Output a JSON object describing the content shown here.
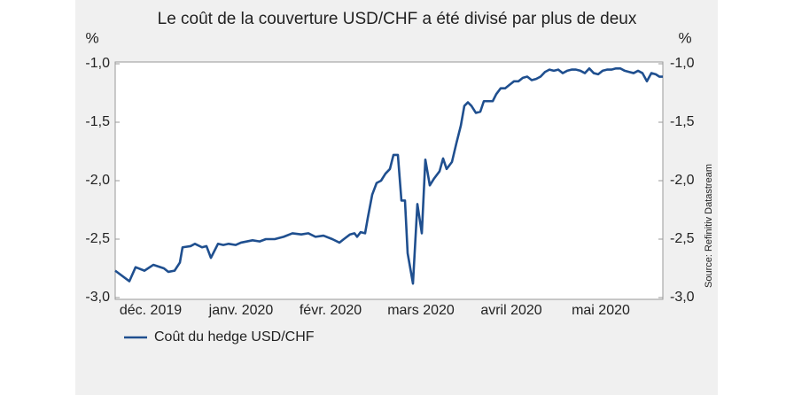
{
  "chart_data": {
    "type": "line",
    "title": "Le coût de la couverture USD/CHF a été divisé par plus de deux",
    "y_label": "%",
    "y2_label": "%",
    "source": "Source: Refinitiv Datastream",
    "x": [
      0,
      16,
      23,
      33,
      43,
      55,
      60,
      67,
      73,
      76,
      85,
      90,
      98,
      103,
      108,
      116,
      122,
      128,
      136,
      142,
      155,
      163,
      170,
      180,
      190,
      200,
      210,
      218,
      226,
      235,
      245,
      253,
      258,
      265,
      270,
      273,
      277,
      282,
      285,
      290,
      295,
      300,
      305,
      310,
      314,
      319,
      323,
      327,
      330,
      336,
      341,
      346,
      350,
      355,
      360,
      366,
      370,
      374,
      380,
      385,
      390,
      394,
      398,
      402,
      407,
      412,
      416,
      422,
      426,
      430,
      435,
      440,
      445,
      450,
      455,
      460,
      465,
      470,
      475,
      480,
      485,
      490,
      495,
      500,
      505,
      510,
      515,
      520,
      525,
      530,
      535,
      540,
      545,
      550,
      555,
      560,
      565,
      570,
      575,
      580,
      585,
      590,
      595,
      600,
      605,
      610,
      614,
      618
    ],
    "series": [
      {
        "name": "Coût du hedge USD/CHF",
        "color": "#1f4f8f",
        "values": [
          -2.77,
          -2.86,
          -2.74,
          -2.77,
          -2.72,
          -2.75,
          -2.78,
          -2.77,
          -2.7,
          -2.57,
          -2.56,
          -2.54,
          -2.57,
          -2.56,
          -2.66,
          -2.54,
          -2.55,
          -2.54,
          -2.55,
          -2.53,
          -2.51,
          -2.52,
          -2.5,
          -2.5,
          -2.48,
          -2.45,
          -2.46,
          -2.45,
          -2.48,
          -2.47,
          -2.5,
          -2.53,
          -2.5,
          -2.46,
          -2.45,
          -2.48,
          -2.44,
          -2.45,
          -2.32,
          -2.12,
          -2.02,
          -2.0,
          -1.94,
          -1.9,
          -1.78,
          -1.78,
          -2.17,
          -2.17,
          -2.62,
          -2.88,
          -2.2,
          -2.45,
          -1.82,
          -2.04,
          -1.98,
          -1.92,
          -1.81,
          -1.9,
          -1.84,
          -1.68,
          -1.53,
          -1.36,
          -1.33,
          -1.36,
          -1.42,
          -1.41,
          -1.32,
          -1.32,
          -1.32,
          -1.26,
          -1.21,
          -1.21,
          -1.18,
          -1.15,
          -1.15,
          -1.12,
          -1.11,
          -1.14,
          -1.13,
          -1.11,
          -1.07,
          -1.05,
          -1.06,
          -1.05,
          -1.08,
          -1.06,
          -1.05,
          -1.05,
          -1.06,
          -1.08,
          -1.04,
          -1.08,
          -1.09,
          -1.06,
          -1.05,
          -1.05,
          -1.04,
          -1.04,
          -1.06,
          -1.07,
          -1.08,
          -1.06,
          -1.08,
          -1.15,
          -1.08,
          -1.09,
          -1.11,
          -1.11
        ]
      }
    ],
    "xlim": [
      0,
      618
    ],
    "xticks": [
      {
        "value": 40,
        "label": "déc. 2019"
      },
      {
        "value": 142,
        "label": "janv. 2020"
      },
      {
        "value": 243,
        "label": "févr. 2020"
      },
      {
        "value": 345,
        "label": "mars 2020"
      },
      {
        "value": 447,
        "label": "avril 2020"
      },
      {
        "value": 548,
        "label": "mai 2020"
      }
    ],
    "ylim": [
      -3,
      -1
    ],
    "yticks": [
      {
        "value": -1,
        "label": "-1,0"
      },
      {
        "value": -1.5,
        "label": "-1,5"
      },
      {
        "value": -2,
        "label": "-2,0"
      },
      {
        "value": -2.5,
        "label": "-2,5"
      },
      {
        "value": -3,
        "label": "-3,0"
      }
    ],
    "grid": false,
    "legend": "bottom-left"
  }
}
